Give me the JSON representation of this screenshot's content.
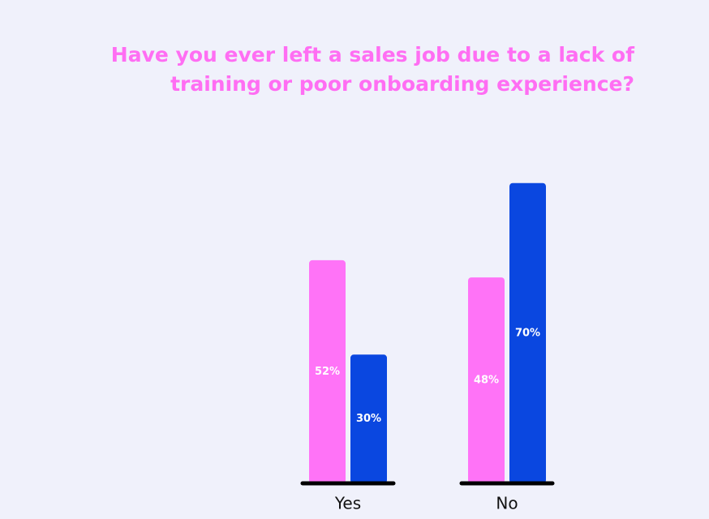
{
  "chart_data": {
    "type": "bar",
    "title": "Have you ever left a sales job due to a lack of training or poor onboarding experience?",
    "categories": [
      "Yes",
      "No"
    ],
    "series": [
      {
        "color": "#ff73f7",
        "values": [
          52,
          48
        ],
        "value_labels": [
          "52%",
          "48%"
        ]
      },
      {
        "color": "#0a47e0",
        "values": [
          30,
          70
        ],
        "value_labels": [
          "30%",
          "70%"
        ]
      }
    ],
    "ylim": [
      0,
      100
    ]
  }
}
